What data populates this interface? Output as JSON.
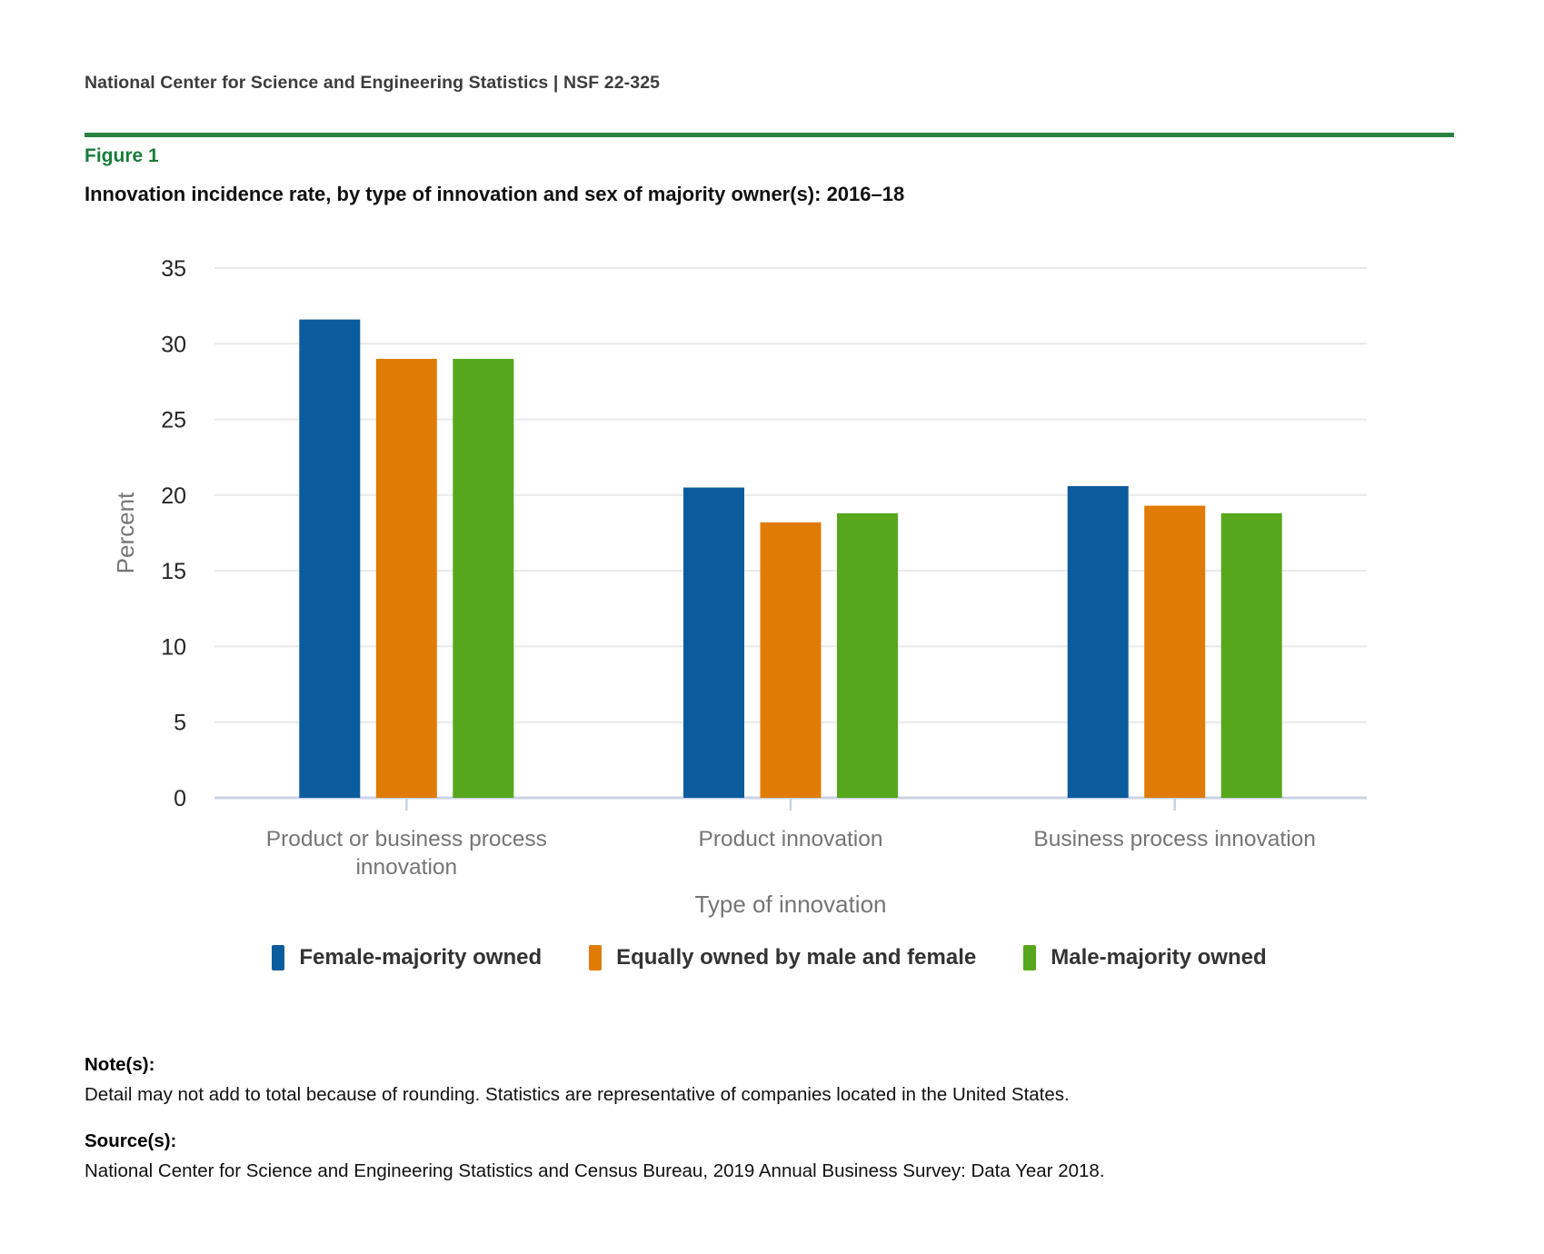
{
  "header": {
    "text": "National Center for Science and Engineering Statistics  |  NSF 22-325"
  },
  "figure_label": "Figure 1",
  "chart_data": {
    "type": "bar",
    "title": "Innovation incidence rate, by type of innovation and sex of majority owner(s): 2016–18",
    "xlabel": "Type of innovation",
    "ylabel": "Percent",
    "ylim": [
      0,
      35
    ],
    "yticks": [
      0,
      5,
      10,
      15,
      20,
      25,
      30,
      35
    ],
    "grid": true,
    "legend_position": "bottom",
    "categories": [
      "Product or business process innovation",
      "Product innovation",
      "Business process innovation"
    ],
    "series": [
      {
        "name": "Female-majority owned",
        "color": "#0B5C9D",
        "values": [
          31.6,
          20.5,
          20.6
        ]
      },
      {
        "name": "Equally owned by male and female",
        "color": "#E07B05",
        "values": [
          29.0,
          18.2,
          19.3
        ]
      },
      {
        "name": "Male-majority owned",
        "color": "#56A71C",
        "values": [
          29.0,
          18.8,
          18.8
        ]
      }
    ]
  },
  "notes": {
    "label": "Note(s):",
    "text": "Detail may not add to total because of rounding. Statistics are representative of companies located in the United States."
  },
  "source": {
    "label": "Source(s):",
    "text": "National Center for Science and Engineering Statistics and Census Bureau, 2019 Annual Business Survey: Data Year 2018."
  },
  "colors": {
    "header_rule": "#2A8240",
    "figure_label": "#177D3B",
    "gridline": "#E9E9E9",
    "axis_line": "#C9D2E4",
    "tick_label": "#262626",
    "axis_text": "#757575",
    "legend_text": "#333333"
  }
}
